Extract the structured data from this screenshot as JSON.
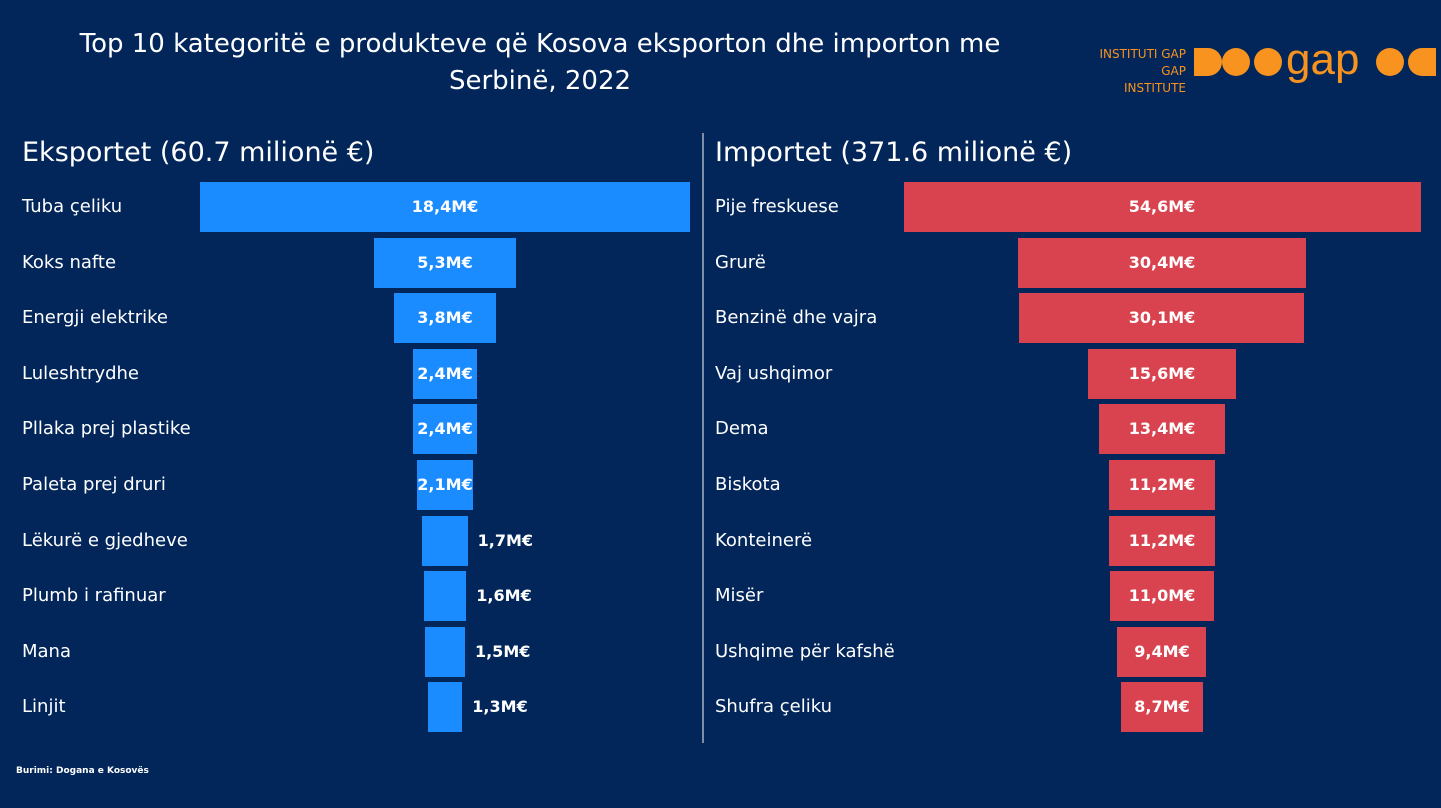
{
  "title_lines": [
    "Top 10 kategoritë e produkteve që Kosova eksporton dhe importon me",
    "Serbinë, 2022"
  ],
  "logo": {
    "line1": "INSTITUTI GAP",
    "line2": "GAP INSTITUTE",
    "wordmark": "gap"
  },
  "source": "Burimi: Dogana e Kosovës",
  "colors": {
    "background": "#02265a",
    "exports_bar": "#1a8cff",
    "imports_bar": "#d9434f",
    "logo_orange": "#f7931e"
  },
  "chart_data": [
    {
      "type": "bar",
      "orientation": "horizontal-centered",
      "title": "Eksportet (60.7 milionë €)",
      "categories": [
        "Tuba çeliku",
        "Koks nafte",
        "Energji elektrike",
        "Luleshtrydhe",
        "Pllaka prej plastike",
        "Paleta prej druri",
        "Lëkurë e gjedheve",
        "Plumb i rafinuar",
        "Mana",
        "Linjit"
      ],
      "values": [
        18.4,
        5.3,
        3.8,
        2.4,
        2.4,
        2.1,
        1.7,
        1.6,
        1.5,
        1.3
      ],
      "labels": [
        "18,4M€",
        "5,3M€",
        "3,8M€",
        "2,4M€",
        "2,4M€",
        "2,1M€",
        "1,7M€",
        "1,6M€",
        "1,5M€",
        "1,3M€"
      ],
      "unit": "M€"
    },
    {
      "type": "bar",
      "orientation": "horizontal-centered",
      "title": "Importet (371.6 milionë €)",
      "categories": [
        "Pije freskuese",
        "Grurë",
        "Benzinë dhe vajra",
        "Vaj ushqimor",
        "Dema",
        "Biskota",
        "Konteinerë",
        "Misër",
        "Ushqime për kafshë",
        "Shufra çeliku"
      ],
      "values": [
        54.6,
        30.4,
        30.1,
        15.6,
        13.4,
        11.2,
        11.2,
        11.0,
        9.4,
        8.7
      ],
      "labels": [
        "54,6M€",
        "30,4M€",
        "30,1M€",
        "15,6M€",
        "13,4M€",
        "11,2M€",
        "11,2M€",
        "11,0M€",
        "9,4M€",
        "8,7M€"
      ],
      "unit": "M€"
    }
  ]
}
